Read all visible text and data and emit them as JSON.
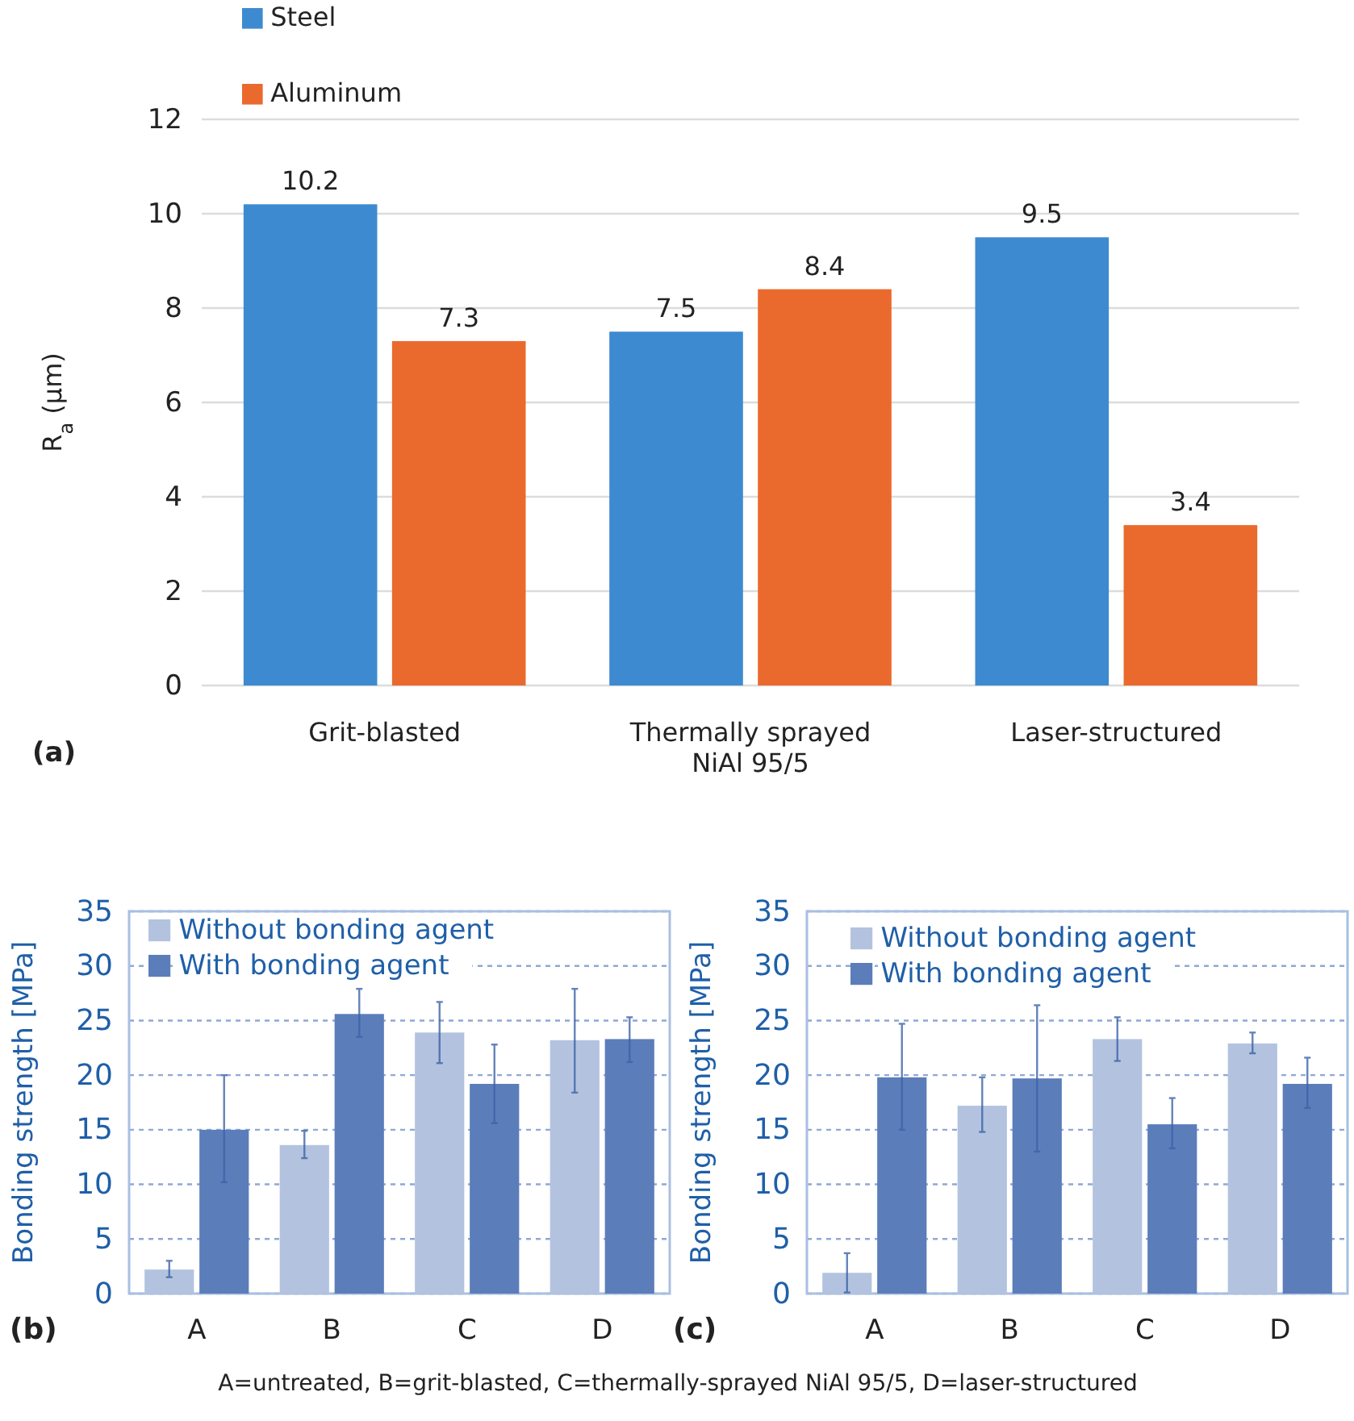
{
  "chart_data": [
    {
      "type": "bar",
      "categories": [
        "Grit-blasted",
        "Thermally sprayed\nNiAl 95/5",
        "Laser-structured"
      ],
      "ylabel": "R$_{a}$ (µm)",
      "ylim": [
        0,
        12
      ],
      "yticks": [
        0,
        2,
        4,
        6,
        8,
        10,
        12
      ],
      "grid": "y",
      "legend": "top left",
      "data_labels": true,
      "annotations": [
        "(a)"
      ],
      "series": [
        {
          "name": "Steel",
          "color": "#3d8ad0",
          "values": [
            10.2,
            7.5,
            9.5
          ]
        },
        {
          "name": "Aluminum",
          "color": "#ea6a2e",
          "values": [
            7.3,
            8.4,
            3.4
          ]
        }
      ]
    },
    {
      "type": "bar",
      "categories": [
        "A",
        "B",
        "C",
        "D"
      ],
      "ylabel": "Bonding strength [MPa]",
      "ylim": [
        0,
        35
      ],
      "yticks": [
        0,
        5,
        10,
        15,
        20,
        25,
        30,
        35
      ],
      "grid": "y",
      "legend": "top left",
      "annotations": [
        "(b)"
      ],
      "series": [
        {
          "name": "Without bonding agent",
          "color": "#b3c3df",
          "values": [
            2.2,
            13.6,
            23.9,
            23.2
          ],
          "errors": [
            [
              1.5,
              3.0
            ],
            [
              12.4,
              14.9
            ],
            [
              21.1,
              26.7
            ],
            [
              18.4,
              27.9
            ]
          ]
        },
        {
          "name": "With bonding agent",
          "color": "#5b7dba",
          "values": [
            15.0,
            25.6,
            19.2,
            23.3
          ],
          "errors": [
            [
              10.2,
              20.0
            ],
            [
              23.5,
              27.9
            ],
            [
              15.6,
              22.8
            ],
            [
              21.2,
              25.3
            ]
          ]
        }
      ]
    },
    {
      "type": "bar",
      "categories": [
        "A",
        "B",
        "C",
        "D"
      ],
      "ylabel": "Bonding strength [MPa]",
      "ylim": [
        0,
        35
      ],
      "yticks": [
        0,
        5,
        10,
        15,
        20,
        25,
        30,
        35
      ],
      "grid": "y",
      "legend": "top left",
      "annotations": [
        "(c)",
        "A=untreated, B=grit-blasted, C=thermally-sprayed NiAl 95/5, D=laser-structured"
      ],
      "series": [
        {
          "name": "Without bonding agent",
          "color": "#b3c3df",
          "values": [
            1.9,
            17.2,
            23.3,
            22.9
          ],
          "errors": [
            [
              0.1,
              3.7
            ],
            [
              14.8,
              19.8
            ],
            [
              21.3,
              25.3
            ],
            [
              22.0,
              23.9
            ]
          ]
        },
        {
          "name": "With bonding agent",
          "color": "#5b7dba",
          "values": [
            19.8,
            19.7,
            15.5,
            19.2
          ],
          "errors": [
            [
              15.0,
              24.7
            ],
            [
              13.0,
              26.4
            ],
            [
              13.3,
              17.9
            ],
            [
              17.0,
              21.6
            ]
          ]
        }
      ]
    }
  ]
}
